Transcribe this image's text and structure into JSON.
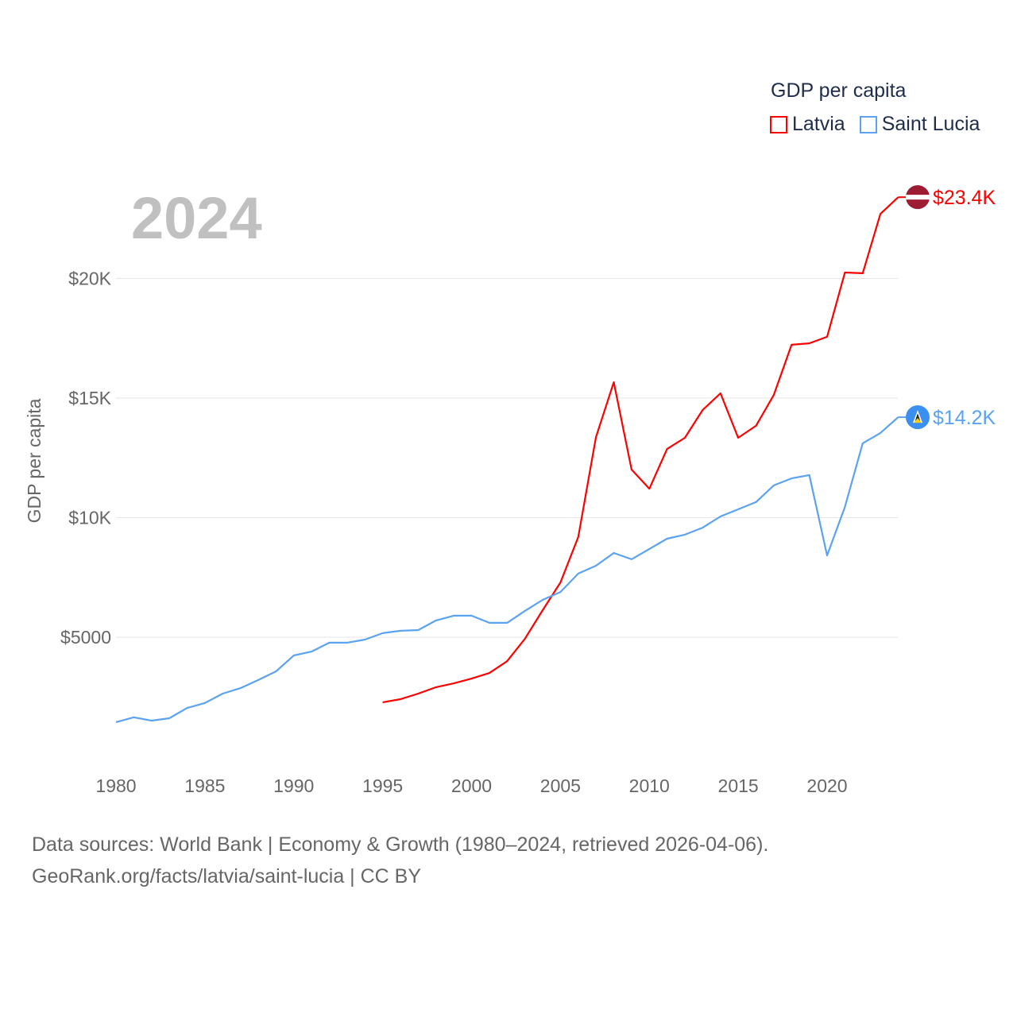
{
  "chart_data": {
    "type": "line",
    "title": "GDP per capita",
    "year_label": "2024",
    "xlabel": "",
    "ylabel": "GDP per capita",
    "xlim": [
      1980,
      2024
    ],
    "ylim": [
      0,
      25000
    ],
    "x_ticks": [
      1980,
      1985,
      1990,
      1995,
      2000,
      2005,
      2010,
      2015,
      2020
    ],
    "x_tick_labels": [
      "1980",
      "1985",
      "1990",
      "1995",
      "2000",
      "2005",
      "2010",
      "2015",
      "2020"
    ],
    "y_ticks": [
      5000,
      10000,
      15000,
      20000
    ],
    "y_tick_labels": [
      "$5000",
      "$10K",
      "$15K",
      "$20K"
    ],
    "grid": true,
    "legend_position": "top-right",
    "series": [
      {
        "name": "Latvia",
        "color": "#ff0000",
        "end_label": "$23.4K",
        "flag": "latvia-flag",
        "x": [
          1995,
          1996,
          1997,
          1998,
          1999,
          2000,
          2001,
          2002,
          2003,
          2004,
          2005,
          2006,
          2007,
          2008,
          2009,
          2010,
          2011,
          2012,
          2013,
          2014,
          2015,
          2016,
          2017,
          2018,
          2019,
          2020,
          2021,
          2022,
          2023,
          2024
        ],
        "values": [
          2280,
          2410,
          2640,
          2910,
          3070,
          3270,
          3500,
          4000,
          4930,
          6130,
          7290,
          9190,
          13370,
          15660,
          12010,
          11210,
          12870,
          13340,
          14500,
          15200,
          13340,
          13840,
          15130,
          17230,
          17290,
          17560,
          20250,
          20220,
          22700,
          23400
        ]
      },
      {
        "name": "Saint Lucia",
        "color": "#5ba3f0",
        "end_label": "$14.2K",
        "flag": "saint-lucia-flag",
        "x": [
          1980,
          1981,
          1982,
          1983,
          1984,
          1985,
          1986,
          1987,
          1988,
          1989,
          1990,
          1991,
          1992,
          1993,
          1994,
          1995,
          1996,
          1997,
          1998,
          1999,
          2000,
          2001,
          2002,
          2003,
          2004,
          2005,
          2006,
          2007,
          2008,
          2009,
          2010,
          2011,
          2012,
          2013,
          2014,
          2015,
          2016,
          2017,
          2018,
          2019,
          2020,
          2021,
          2022,
          2023,
          2024
        ],
        "values": [
          1450,
          1650,
          1510,
          1610,
          2040,
          2250,
          2640,
          2870,
          3210,
          3570,
          4240,
          4400,
          4770,
          4770,
          4900,
          5170,
          5270,
          5300,
          5700,
          5900,
          5900,
          5600,
          5600,
          6100,
          6560,
          6890,
          7660,
          7990,
          8520,
          8260,
          8690,
          9120,
          9290,
          9580,
          10050,
          10350,
          10650,
          11350,
          11640,
          11780,
          8420,
          10450,
          13110,
          13540,
          14200
        ]
      }
    ]
  },
  "footer": {
    "line1": "Data sources: World Bank | Economy & Growth (1980–2024, retrieved 2026-04-06).",
    "line2": "GeoRank.org/facts/latvia/saint-lucia | CC BY"
  }
}
